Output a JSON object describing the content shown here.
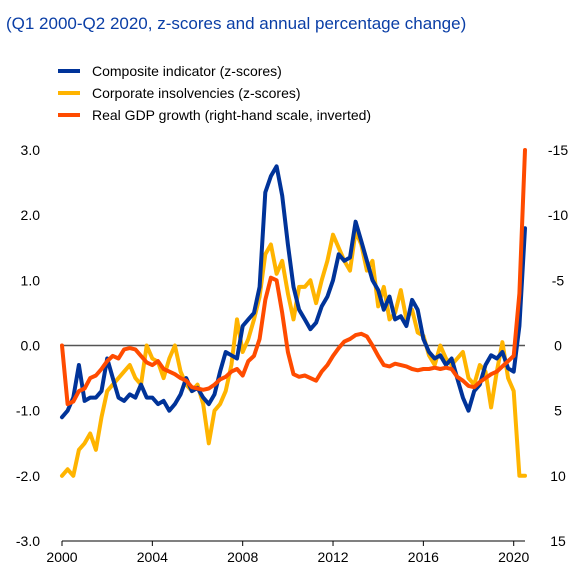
{
  "subtitle": "(Q1 2000-Q2 2020, z-scores and annual percentage change)",
  "chart_data": {
    "type": "line",
    "title": "",
    "xlabel": "",
    "ylabel": "",
    "x_start": 2000,
    "x_step": 0.25,
    "xlim": [
      2000,
      2020.5
    ],
    "ylim": [
      -3,
      3
    ],
    "y2lim": [
      -15,
      15
    ],
    "y2_inverted": true,
    "x_ticks": [
      "2000",
      "2004",
      "2008",
      "2012",
      "2016",
      "2020"
    ],
    "y_ticks": [
      "-3.0",
      "-2.0",
      "-1.0",
      "0.0",
      "1.0",
      "2.0",
      "3.0"
    ],
    "y2_ticks": [
      "15",
      "10",
      "5",
      "0",
      "-5",
      "-10",
      "-15"
    ],
    "zero_line": true,
    "grid": false,
    "legend_position": "top-left",
    "series": [
      {
        "name": "Composite indicator (z-scores)",
        "color": "#003399",
        "axis": "left",
        "values": [
          -1.1,
          -1.0,
          -0.8,
          -0.3,
          -0.85,
          -0.8,
          -0.8,
          -0.7,
          -0.2,
          -0.5,
          -0.8,
          -0.85,
          -0.75,
          -0.8,
          -0.6,
          -0.8,
          -0.8,
          -0.9,
          -0.85,
          -1.0,
          -0.9,
          -0.75,
          -0.5,
          -0.7,
          -0.65,
          -0.8,
          -0.9,
          -0.75,
          -0.4,
          -0.1,
          -0.15,
          -0.2,
          0.3,
          0.4,
          0.5,
          0.9,
          2.35,
          2.6,
          2.75,
          2.3,
          1.55,
          0.9,
          0.55,
          0.4,
          0.25,
          0.35,
          0.6,
          0.75,
          1.0,
          1.4,
          1.3,
          1.35,
          1.9,
          1.6,
          1.3,
          1.0,
          0.85,
          0.55,
          0.75,
          0.4,
          0.45,
          0.3,
          0.7,
          0.55,
          0.1,
          -0.1,
          -0.2,
          -0.15,
          -0.3,
          -0.2,
          -0.5,
          -0.8,
          -1.0,
          -0.7,
          -0.6,
          -0.3,
          -0.15,
          -0.2,
          -0.1,
          -0.35,
          -0.4,
          0.3,
          1.8
        ]
      },
      {
        "name": "Corporate insolvencies (z-scores)",
        "color": "#ffb400",
        "axis": "left",
        "values": [
          -2.0,
          -1.9,
          -2.0,
          -1.6,
          -1.5,
          -1.35,
          -1.6,
          -1.1,
          -0.7,
          -0.6,
          -0.5,
          -0.4,
          -0.3,
          -0.5,
          -0.6,
          0.0,
          -0.2,
          -0.25,
          -0.5,
          -0.2,
          0.0,
          -0.4,
          -0.6,
          -0.7,
          -0.6,
          -0.9,
          -1.5,
          -1.0,
          -0.9,
          -0.7,
          -0.3,
          0.4,
          -0.1,
          0.1,
          0.4,
          0.75,
          1.4,
          1.55,
          1.1,
          1.3,
          0.8,
          0.4,
          0.9,
          0.9,
          1.0,
          0.65,
          1.0,
          1.3,
          1.7,
          1.5,
          1.3,
          1.15,
          1.75,
          1.55,
          1.15,
          1.3,
          0.6,
          0.9,
          0.4,
          0.5,
          0.85,
          0.4,
          0.55,
          0.2,
          0.15,
          -0.15,
          -0.3,
          0.0,
          -0.2,
          -0.3,
          -0.2,
          -0.1,
          -0.5,
          -0.6,
          -0.3,
          -0.4,
          -0.95,
          -0.4,
          0.05,
          -0.5,
          -0.7,
          -2.0,
          -2.0
        ]
      },
      {
        "name": "Real GDP growth (right-hand scale, inverted)",
        "color": "#ff4b00",
        "axis": "right",
        "values": [
          0.0,
          4.5,
          4.3,
          3.5,
          3.3,
          2.5,
          2.3,
          1.8,
          1.2,
          0.8,
          1.0,
          0.3,
          0.2,
          0.3,
          0.8,
          1.3,
          1.5,
          1.2,
          1.8,
          2.0,
          2.2,
          2.5,
          2.7,
          3.2,
          3.3,
          3.4,
          3.3,
          3.0,
          2.6,
          2.4,
          2.0,
          1.8,
          2.3,
          1.2,
          0.8,
          -0.5,
          -3.5,
          -5.2,
          -5.0,
          -2.5,
          0.5,
          2.2,
          2.4,
          2.3,
          2.5,
          2.7,
          2.0,
          1.5,
          0.8,
          0.2,
          -0.3,
          -0.5,
          -0.8,
          -0.9,
          -0.7,
          0.0,
          0.8,
          1.5,
          1.6,
          1.4,
          1.5,
          1.6,
          1.8,
          1.9,
          1.8,
          1.8,
          1.7,
          1.8,
          1.7,
          1.8,
          2.4,
          2.7,
          3.1,
          3.2,
          2.8,
          2.5,
          2.2,
          2.0,
          1.6,
          1.2,
          0.8,
          -4.0,
          -15.0
        ]
      }
    ]
  }
}
